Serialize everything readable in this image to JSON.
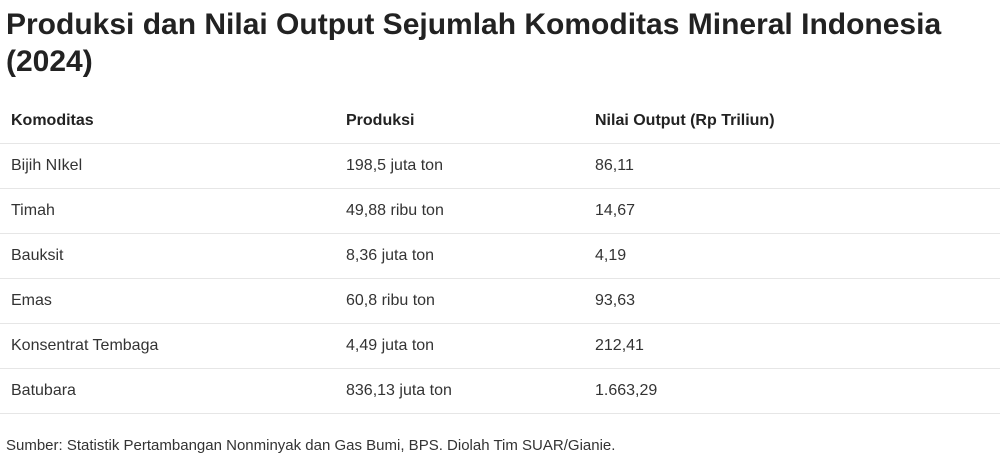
{
  "title": "Produksi dan Nilai Output Sejumlah Komoditas Mineral Indonesia (2024)",
  "columns": [
    "Komoditas",
    "Produksi",
    "Nilai Output (Rp Triliun)"
  ],
  "rows": [
    [
      "Bijih NIkel",
      "198,5 juta ton",
      "86,11"
    ],
    [
      "Timah",
      "49,88 ribu ton",
      "14,67"
    ],
    [
      "Bauksit",
      "8,36 juta ton",
      "4,19"
    ],
    [
      "Emas",
      "60,8 ribu ton",
      "93,63"
    ],
    [
      "Konsentrat Tembaga",
      "4,49 juta ton",
      "212,41"
    ],
    [
      "Batubara",
      "836,13 juta ton",
      "1.663,29"
    ]
  ],
  "source": "Sumber: Statistik Pertambangan Nonminyak dan Gas Bumi, BPS. Diolah Tim SUAR/Gianie.",
  "chart_data": {
    "type": "table",
    "title": "Produksi dan Nilai Output Sejumlah Komoditas Mineral Indonesia (2024)",
    "columns": [
      "Komoditas",
      "Produksi",
      "Nilai Output (Rp Triliun)"
    ],
    "rows": [
      [
        "Bijih NIkel",
        "198,5 juta ton",
        "86,11"
      ],
      [
        "Timah",
        "49,88 ribu ton",
        "14,67"
      ],
      [
        "Bauksit",
        "8,36 juta ton",
        "4,19"
      ],
      [
        "Emas",
        "60,8 ribu ton",
        "93,63"
      ],
      [
        "Konsentrat Tembaga",
        "4,49 juta ton",
        "212,41"
      ],
      [
        "Batubara",
        "836,13 juta ton",
        "1.663,29"
      ]
    ]
  }
}
